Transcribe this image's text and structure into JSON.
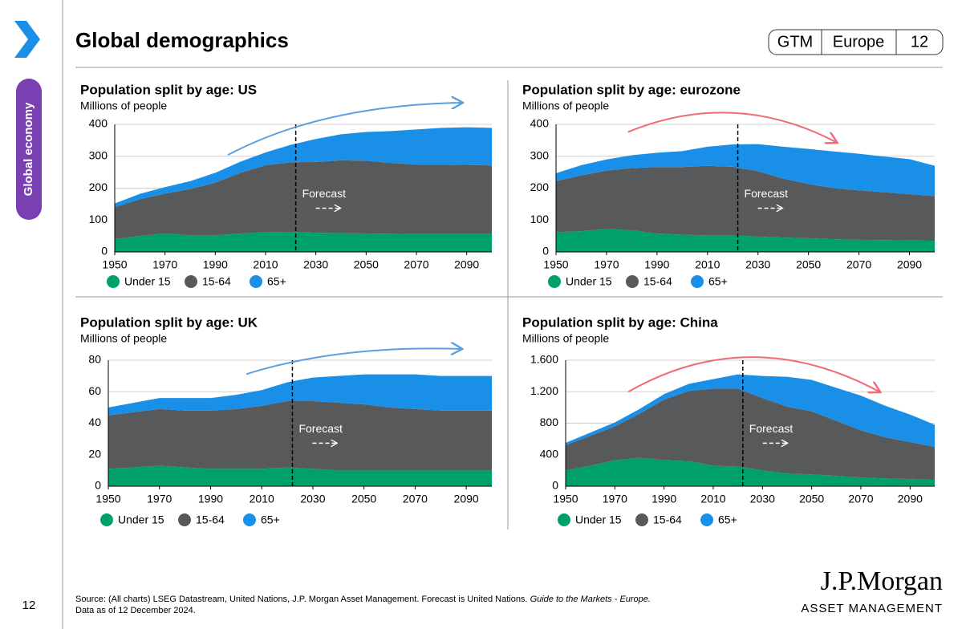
{
  "header": {
    "title": "Global demographics",
    "tags": [
      "GTM",
      "Europe",
      "12"
    ]
  },
  "sidebar": {
    "section": "Global economy",
    "page": "12"
  },
  "footer": {
    "source": "Source: (All charts) LSEG Datastream, United Nations, J.P. Morgan Asset Management. Forecast is United Nations.",
    "guide": "Guide to the Markets - Europe.",
    "date": "Data as of 12 December 2024.",
    "logo": "J.P.Morgan",
    "logo_sub": "ASSET MANAGEMENT"
  },
  "chart_data": [
    {
      "type": "area",
      "stacked": true,
      "title": "Population split by age: US",
      "subtitle": "Millions of people",
      "annotation": "Forecast",
      "forecast_x": 2022,
      "x": [
        1950,
        1960,
        1970,
        1980,
        1990,
        2000,
        2010,
        2020,
        2030,
        2040,
        2050,
        2060,
        2070,
        2080,
        2090,
        2100
      ],
      "series": [
        {
          "name": "Under 15",
          "color": "#00a06a",
          "values": [
            40,
            50,
            58,
            52,
            52,
            58,
            62,
            63,
            60,
            59,
            58,
            57,
            56,
            56,
            56,
            56
          ]
        },
        {
          "name": "15-64",
          "color": "#58595b",
          "values": [
            100,
            115,
            125,
            145,
            165,
            190,
            210,
            218,
            222,
            228,
            228,
            222,
            218,
            218,
            217,
            215
          ]
        },
        {
          "name": "65+",
          "color": "#1a8fe8",
          "values": [
            12,
            17,
            20,
            25,
            31,
            35,
            40,
            55,
            72,
            82,
            90,
            100,
            110,
            115,
            118,
            118
          ]
        }
      ],
      "xlim": [
        1950,
        2100
      ],
      "xticks": [
        1950,
        1970,
        1990,
        2010,
        2030,
        2050,
        2070,
        2090
      ],
      "ylim": [
        0,
        400
      ],
      "yticks": [
        0,
        100,
        200,
        300,
        400
      ],
      "grid": true,
      "trend_color": "#5a9fe0"
    },
    {
      "type": "area",
      "stacked": true,
      "title": "Population split by age: eurozone",
      "subtitle": "Millions of people",
      "annotation": "Forecast",
      "forecast_x": 2022,
      "x": [
        1950,
        1960,
        1970,
        1980,
        1990,
        2000,
        2010,
        2020,
        2030,
        2040,
        2050,
        2060,
        2070,
        2080,
        2090,
        2100
      ],
      "series": [
        {
          "name": "Under 15",
          "color": "#00a06a",
          "values": [
            62,
            65,
            72,
            68,
            58,
            54,
            52,
            52,
            48,
            45,
            43,
            40,
            38,
            37,
            36,
            35
          ]
        },
        {
          "name": "15-64",
          "color": "#58595b",
          "values": [
            160,
            175,
            183,
            195,
            208,
            212,
            218,
            215,
            205,
            185,
            170,
            160,
            155,
            150,
            145,
            140
          ]
        },
        {
          "name": "65+",
          "color": "#1a8fe8",
          "values": [
            25,
            32,
            35,
            40,
            45,
            50,
            60,
            70,
            85,
            100,
            110,
            115,
            115,
            112,
            110,
            95
          ]
        }
      ],
      "xlim": [
        1950,
        2100
      ],
      "xticks": [
        1950,
        1970,
        1990,
        2010,
        2030,
        2050,
        2070,
        2090
      ],
      "ylim": [
        0,
        400
      ],
      "yticks": [
        0,
        100,
        200,
        300,
        400
      ],
      "grid": true,
      "trend_color": "#f06a78"
    },
    {
      "type": "area",
      "stacked": true,
      "title": "Population split by age: UK",
      "subtitle": "Millions of people",
      "annotation": "Forecast",
      "forecast_x": 2022,
      "x": [
        1950,
        1960,
        1970,
        1980,
        1990,
        2000,
        2010,
        2020,
        2030,
        2040,
        2050,
        2060,
        2070,
        2080,
        2090,
        2100
      ],
      "series": [
        {
          "name": "Under 15",
          "color": "#00a06a",
          "values": [
            11,
            12,
            13,
            12,
            11,
            11,
            11,
            12,
            11,
            10,
            10,
            10,
            10,
            10,
            10,
            10
          ]
        },
        {
          "name": "15-64",
          "color": "#58595b",
          "values": [
            34,
            35,
            36,
            36,
            37,
            38,
            40,
            42,
            43,
            43,
            42,
            40,
            39,
            38,
            38,
            38
          ]
        },
        {
          "name": "65+",
          "color": "#1a8fe8",
          "values": [
            5,
            6,
            7,
            8,
            8,
            9,
            10,
            12,
            15,
            17,
            19,
            21,
            22,
            22,
            22,
            22
          ]
        }
      ],
      "xlim": [
        1950,
        2100
      ],
      "xticks": [
        1950,
        1970,
        1990,
        2010,
        2030,
        2050,
        2070,
        2090
      ],
      "ylim": [
        0,
        80
      ],
      "yticks": [
        0,
        20,
        40,
        60,
        80
      ],
      "grid": true,
      "trend_color": "#5a9fe0"
    },
    {
      "type": "area",
      "stacked": true,
      "title": "Population split by age: China",
      "subtitle": "Millions of people",
      "annotation": "Forecast",
      "forecast_x": 2022,
      "x": [
        1950,
        1960,
        1970,
        1980,
        1990,
        2000,
        2010,
        2020,
        2030,
        2040,
        2050,
        2060,
        2070,
        2080,
        2090,
        2100
      ],
      "series": [
        {
          "name": "Under 15",
          "color": "#00a06a",
          "values": [
            200,
            260,
            330,
            360,
            330,
            320,
            260,
            250,
            200,
            160,
            150,
            130,
            110,
            100,
            90,
            80
          ]
        },
        {
          "name": "15-64",
          "color": "#58595b",
          "values": [
            320,
            380,
            430,
            560,
            770,
            890,
            980,
            990,
            920,
            850,
            800,
            700,
            600,
            520,
            470,
            420
          ]
        },
        {
          "name": "65+",
          "color": "#1a8fe8",
          "values": [
            30,
            40,
            50,
            60,
            70,
            90,
            120,
            180,
            280,
            380,
            400,
            420,
            440,
            400,
            350,
            280
          ]
        }
      ],
      "xlim": [
        1950,
        2100
      ],
      "xticks": [
        1950,
        1970,
        1990,
        2010,
        2030,
        2050,
        2070,
        2090
      ],
      "ylim": [
        0,
        1600
      ],
      "yticks": [
        0,
        400,
        800,
        {
          "value": 1200,
          "label": "1.200"
        },
        {
          "value": 1600,
          "label": "1.600"
        }
      ],
      "grid": true,
      "trend_color": "#f06a78"
    }
  ]
}
